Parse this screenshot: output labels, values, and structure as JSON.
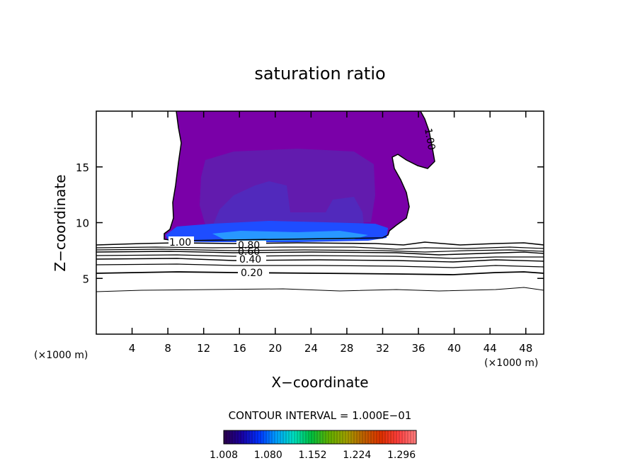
{
  "chart_data": {
    "type": "contour",
    "title": "saturation ratio",
    "xlabel": "X−coordinate",
    "ylabel": "Z−coordinate",
    "x_unit_left": "(×1000 m)",
    "x_unit_right": "(×1000 m)",
    "xlim": [
      0,
      50
    ],
    "ylim": [
      0,
      20
    ],
    "x_ticks": [
      4,
      8,
      12,
      16,
      20,
      24,
      28,
      32,
      36,
      40,
      44,
      48
    ],
    "y_ticks": [
      5,
      10,
      15
    ],
    "contour_labels": [
      {
        "text": "1.00",
        "x": 37.5,
        "y": 17.0,
        "rotate": 80
      },
      {
        "text": "1.00",
        "x": 9.5,
        "y": 8.1,
        "rotate": 0
      },
      {
        "text": "0.80",
        "x": 17.3,
        "y": 7.9,
        "rotate": 0
      },
      {
        "text": "0.60",
        "x": 17.3,
        "y": 7.4,
        "rotate": 0
      },
      {
        "text": "0.40",
        "x": 17.3,
        "y": 6.7,
        "rotate": 0
      },
      {
        "text": "0.20",
        "x": 17.5,
        "y": 5.5,
        "rotate": 0
      }
    ],
    "contour_interval_text": "CONTOUR INTERVAL = 1.000E−01",
    "colorbar": {
      "min": 1.008,
      "max": 1.32,
      "tick_labels": [
        "1.008",
        "1.080",
        "1.152",
        "1.224",
        "1.296"
      ],
      "colors": [
        "#2b004a",
        "#1a00a0",
        "#0030ff",
        "#00a0ff",
        "#00e0c0",
        "#00c040",
        "#60b000",
        "#a0a000",
        "#c06000",
        "#e03000",
        "#ff4040",
        "#ff8080"
      ]
    }
  }
}
